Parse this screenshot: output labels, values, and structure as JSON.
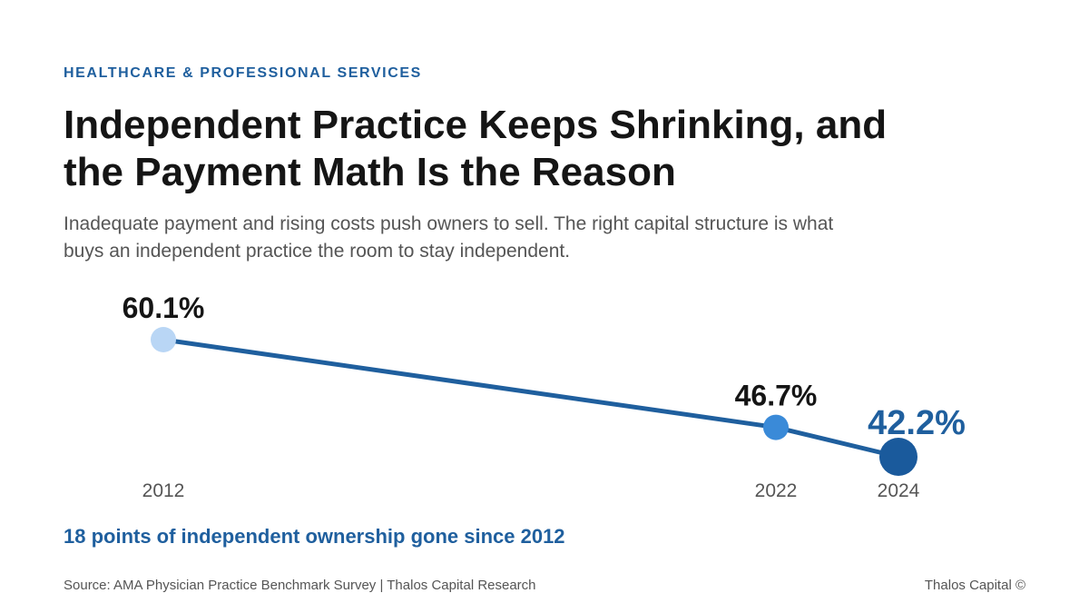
{
  "header": {
    "eyebrow": "HEALTHCARE & PROFESSIONAL SERVICES",
    "title": "Independent Practice Keeps Shrinking, and the Payment Math Is the Reason",
    "subtitle": "Inadequate payment and rising costs push owners to sell. The right capital structure is what buys an independent practice the room to stay independent."
  },
  "chart_data": {
    "type": "line",
    "x": [
      "2012",
      "2022",
      "2024"
    ],
    "values": [
      60.1,
      46.7,
      42.2
    ],
    "data_labels": [
      "60.1%",
      "46.7%",
      "42.2%"
    ],
    "ylabel": "",
    "xlabel": "",
    "grid": false,
    "legend": "none",
    "colors": {
      "line": "#1f5f9e",
      "points": [
        "#b9d6f5",
        "#3a8ad8",
        "#1a5a9c"
      ],
      "highlight_label": "#1f5f9e",
      "label": "#151515",
      "tick": "#555555"
    }
  },
  "footer": {
    "takeaway": "18 points of independent ownership gone since 2012",
    "source": "Source: AMA Physician Practice Benchmark Survey | Thalos Capital Research",
    "brand": "Thalos Capital ©"
  }
}
